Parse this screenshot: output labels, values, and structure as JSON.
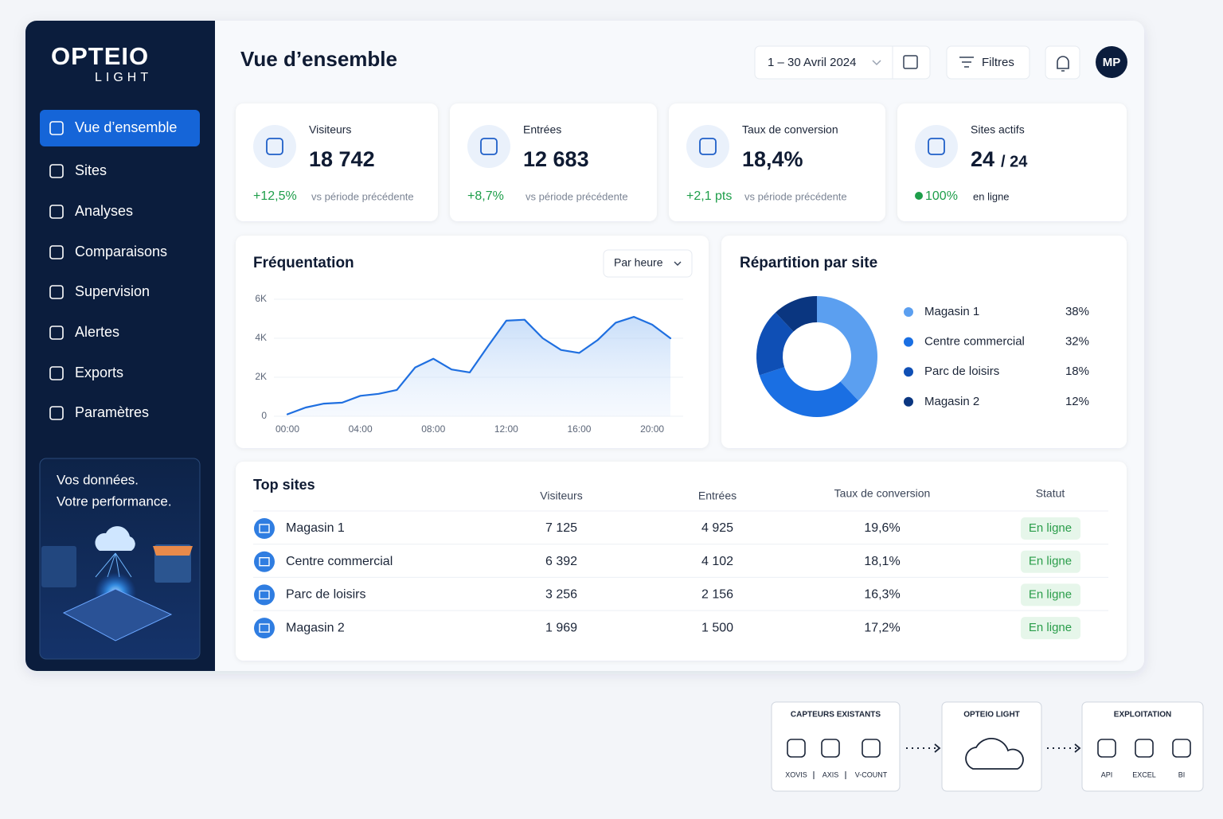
{
  "brand": {
    "name": "OPTEIO",
    "sub": "LIGHT"
  },
  "nav": [
    "Vue d’ensemble",
    "Sites",
    "Analyses",
    "Comparaisons",
    "Supervision",
    "Alertes",
    "Exports",
    "Paramètres"
  ],
  "promo": [
    "Vos données.",
    "Votre performance."
  ],
  "header": {
    "title": "Vue d’ensemble",
    "date_range": "1 – 30 Avril 2024",
    "filters": "Filtres",
    "avatar": "MP"
  },
  "kpis": [
    {
      "label": "Visiteurs",
      "value": "18 742",
      "delta": "+12,5%",
      "note": "vs période précédente"
    },
    {
      "label": "Entrées",
      "value": "12 683",
      "delta": "+8,7%",
      "note": "vs période précédente"
    },
    {
      "label": "Taux de conversion",
      "value": "18,4%",
      "delta": "+2,1 pts",
      "note": "vs période précédente"
    },
    {
      "label": "Sites actifs",
      "value": "24",
      "total": "/ 24",
      "delta": "100%",
      "note": "en ligne"
    }
  ],
  "frequentation": {
    "type": "line",
    "title": "Fréquentation",
    "selector": "Par heure",
    "color": "#1f6fe0",
    "grid": true,
    "x": [
      0,
      1,
      2,
      3,
      4,
      5,
      6,
      7,
      8,
      9,
      10,
      11,
      12,
      13,
      14,
      15,
      16,
      17,
      18,
      19,
      20,
      21
    ],
    "values": [
      100,
      450,
      650,
      700,
      1050,
      1150,
      1350,
      2500,
      2950,
      2400,
      2250,
      3600,
      4900,
      4950,
      4000,
      3400,
      3250,
      3900,
      4800,
      5100,
      4700,
      4000
    ],
    "xlim": [
      0,
      21
    ],
    "xticks": [
      {
        "value": 0,
        "label": "00:00"
      },
      {
        "value": 4,
        "label": "04:00"
      },
      {
        "value": 8,
        "label": "08:00"
      },
      {
        "value": 12,
        "label": "12:00"
      },
      {
        "value": 16,
        "label": "16:00"
      },
      {
        "value": 20,
        "label": "20:00"
      }
    ],
    "ylim": [
      0,
      6000
    ],
    "yticks": [
      0,
      {
        "value": 2000,
        "label": "2K"
      },
      {
        "value": 4000,
        "label": "4K"
      },
      {
        "value": 6000,
        "label": "6K"
      }
    ]
  },
  "repartition": {
    "type": "pie",
    "title": "Répartition par site",
    "categories": [
      "Magasin 1",
      "Centre commercial",
      "Parc de loisirs",
      "Magasin 2"
    ],
    "values": [
      38,
      32,
      18,
      12
    ],
    "value_labels": [
      "38%",
      "32%",
      "18%",
      "12%"
    ],
    "colors": [
      "#5b9ff0",
      "#1a6fe3",
      "#0f4fb5",
      "#0a3680"
    ]
  },
  "top_sites": {
    "title": "Top sites",
    "columns": [
      "Visiteurs",
      "Entrées",
      "Taux de conversion",
      "Statut"
    ],
    "rows": [
      [
        "Magasin 1",
        "7 125",
        "4 925",
        "19,6%",
        "En ligne"
      ],
      [
        "Centre commercial",
        "6 392",
        "4 102",
        "18,1%",
        "En ligne"
      ],
      [
        "Parc de loisirs",
        "3 256",
        "2 156",
        "16,3%",
        "En ligne"
      ],
      [
        "Magasin 2",
        "1 969",
        "1 500",
        "17,2%",
        "En ligne"
      ]
    ]
  },
  "pipeline": [
    {
      "title": "CAPTEURS EXISTANTS",
      "items": [
        "XOVIS",
        "AXIS",
        "V-COUNT"
      ]
    },
    {
      "title": "OPTEIO LIGHT"
    },
    {
      "title": "EXPLOITATION",
      "items": [
        "API",
        "EXCEL",
        "BI"
      ]
    }
  ]
}
